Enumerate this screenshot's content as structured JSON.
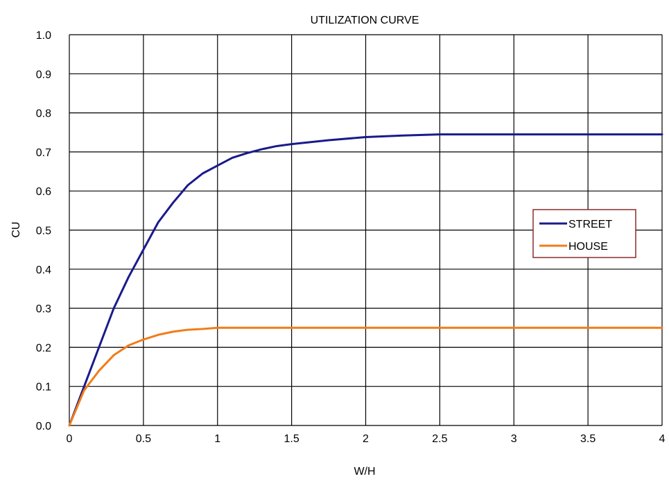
{
  "chart_data": {
    "type": "line",
    "title": "UTILIZATION CURVE",
    "xlabel": "W/H",
    "ylabel": "CU",
    "xlim": [
      0,
      4
    ],
    "ylim": [
      0,
      1.0
    ],
    "x_ticks": [
      "0",
      "0.5",
      "1",
      "1.5",
      "2",
      "2.5",
      "3",
      "3.5",
      "4"
    ],
    "y_ticks": [
      "0.0",
      "0.1",
      "0.2",
      "0.3",
      "0.4",
      "0.5",
      "0.6",
      "0.7",
      "0.8",
      "0.9",
      "1.0"
    ],
    "grid": true,
    "legend_position": "right",
    "series": [
      {
        "name": "STREET",
        "color": "#1a1a8c",
        "x": [
          0,
          0.1,
          0.2,
          0.3,
          0.4,
          0.5,
          0.6,
          0.7,
          0.8,
          0.9,
          1.0,
          1.1,
          1.2,
          1.3,
          1.4,
          1.5,
          1.75,
          2.0,
          2.25,
          2.5,
          3.0,
          3.5,
          4.0
        ],
        "y": [
          0,
          0.1,
          0.2,
          0.3,
          0.38,
          0.45,
          0.52,
          0.57,
          0.615,
          0.645,
          0.665,
          0.685,
          0.697,
          0.707,
          0.715,
          0.72,
          0.73,
          0.738,
          0.742,
          0.745,
          0.745,
          0.745,
          0.745
        ]
      },
      {
        "name": "HOUSE",
        "color": "#f07d18",
        "x": [
          0,
          0.1,
          0.2,
          0.3,
          0.4,
          0.5,
          0.6,
          0.7,
          0.8,
          0.9,
          1.0,
          1.5,
          2.0,
          2.5,
          3.0,
          3.5,
          4.0
        ],
        "y": [
          0,
          0.09,
          0.14,
          0.18,
          0.205,
          0.22,
          0.232,
          0.24,
          0.245,
          0.247,
          0.25,
          0.25,
          0.25,
          0.25,
          0.25,
          0.25,
          0.25
        ]
      }
    ]
  }
}
